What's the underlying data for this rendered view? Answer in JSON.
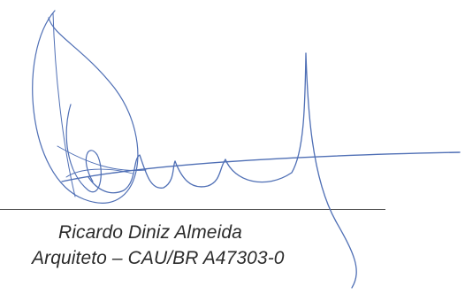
{
  "signatory": {
    "name": "Ricardo Diniz Almeida",
    "title": "Arquiteto – CAU/BR A47303-0"
  },
  "colors": {
    "ink": "#2b2b2b",
    "signature_ink": "#4f6fb5",
    "rule": "#4a4a4a"
  }
}
